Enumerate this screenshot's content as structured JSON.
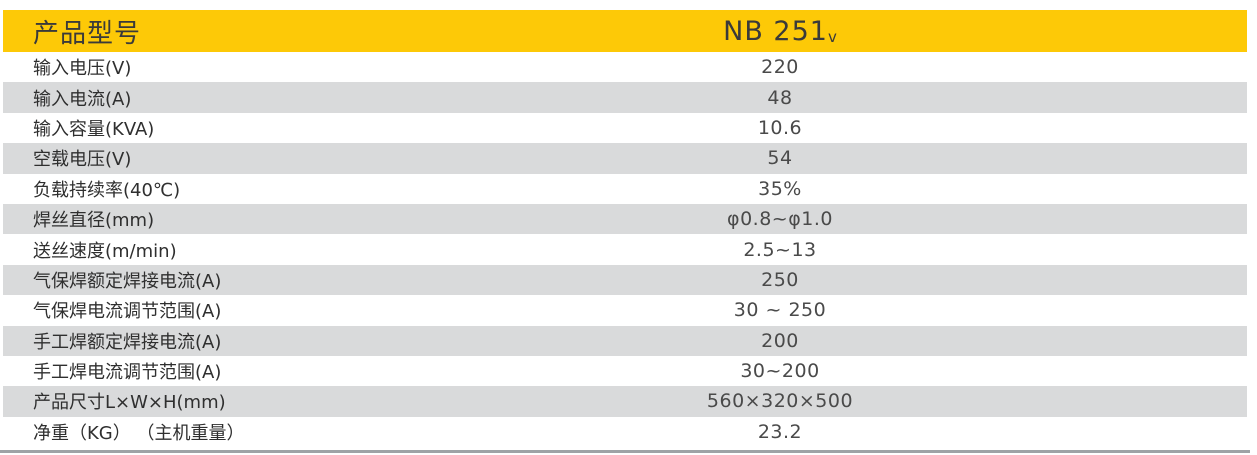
{
  "table": {
    "header": {
      "label": "产品型号",
      "model_main": "NB 251",
      "model_sub": "v"
    },
    "rows": [
      {
        "label": "输入电压(V)",
        "value": "220"
      },
      {
        "label": "输入电流(A)",
        "value": "48"
      },
      {
        "label": "输入容量(KVA)",
        "value": "10.6"
      },
      {
        "label": "空载电压(V)",
        "value": "54"
      },
      {
        "label": "负载持续率(40℃)",
        "value": "35%"
      },
      {
        "label": "焊丝直径(mm)",
        "value": "φ0.8~φ1.0"
      },
      {
        "label": "送丝速度(m/min)",
        "value": "2.5~13"
      },
      {
        "label": "气保焊额定焊接电流(A)",
        "value": "250"
      },
      {
        "label": "气保焊电流调节范围(A)",
        "value": "30 ~ 250"
      },
      {
        "label": "手工焊额定焊接电流(A)",
        "value": "200"
      },
      {
        "label": "手工焊电流调节范围(A)",
        "value": "30~200"
      },
      {
        "label": "产品尺寸L×W×H(mm)",
        "value": "560×320×500"
      },
      {
        "label": "净重（KG） （主机重量）",
        "value": "23.2"
      }
    ],
    "colors": {
      "header_bg": "#FDC907",
      "header_text": "#3A3A3A",
      "row_alt_bg": "#D9DADB",
      "value_text": "#4A4A4A",
      "bottom_rule": "#9EA3A6"
    }
  }
}
